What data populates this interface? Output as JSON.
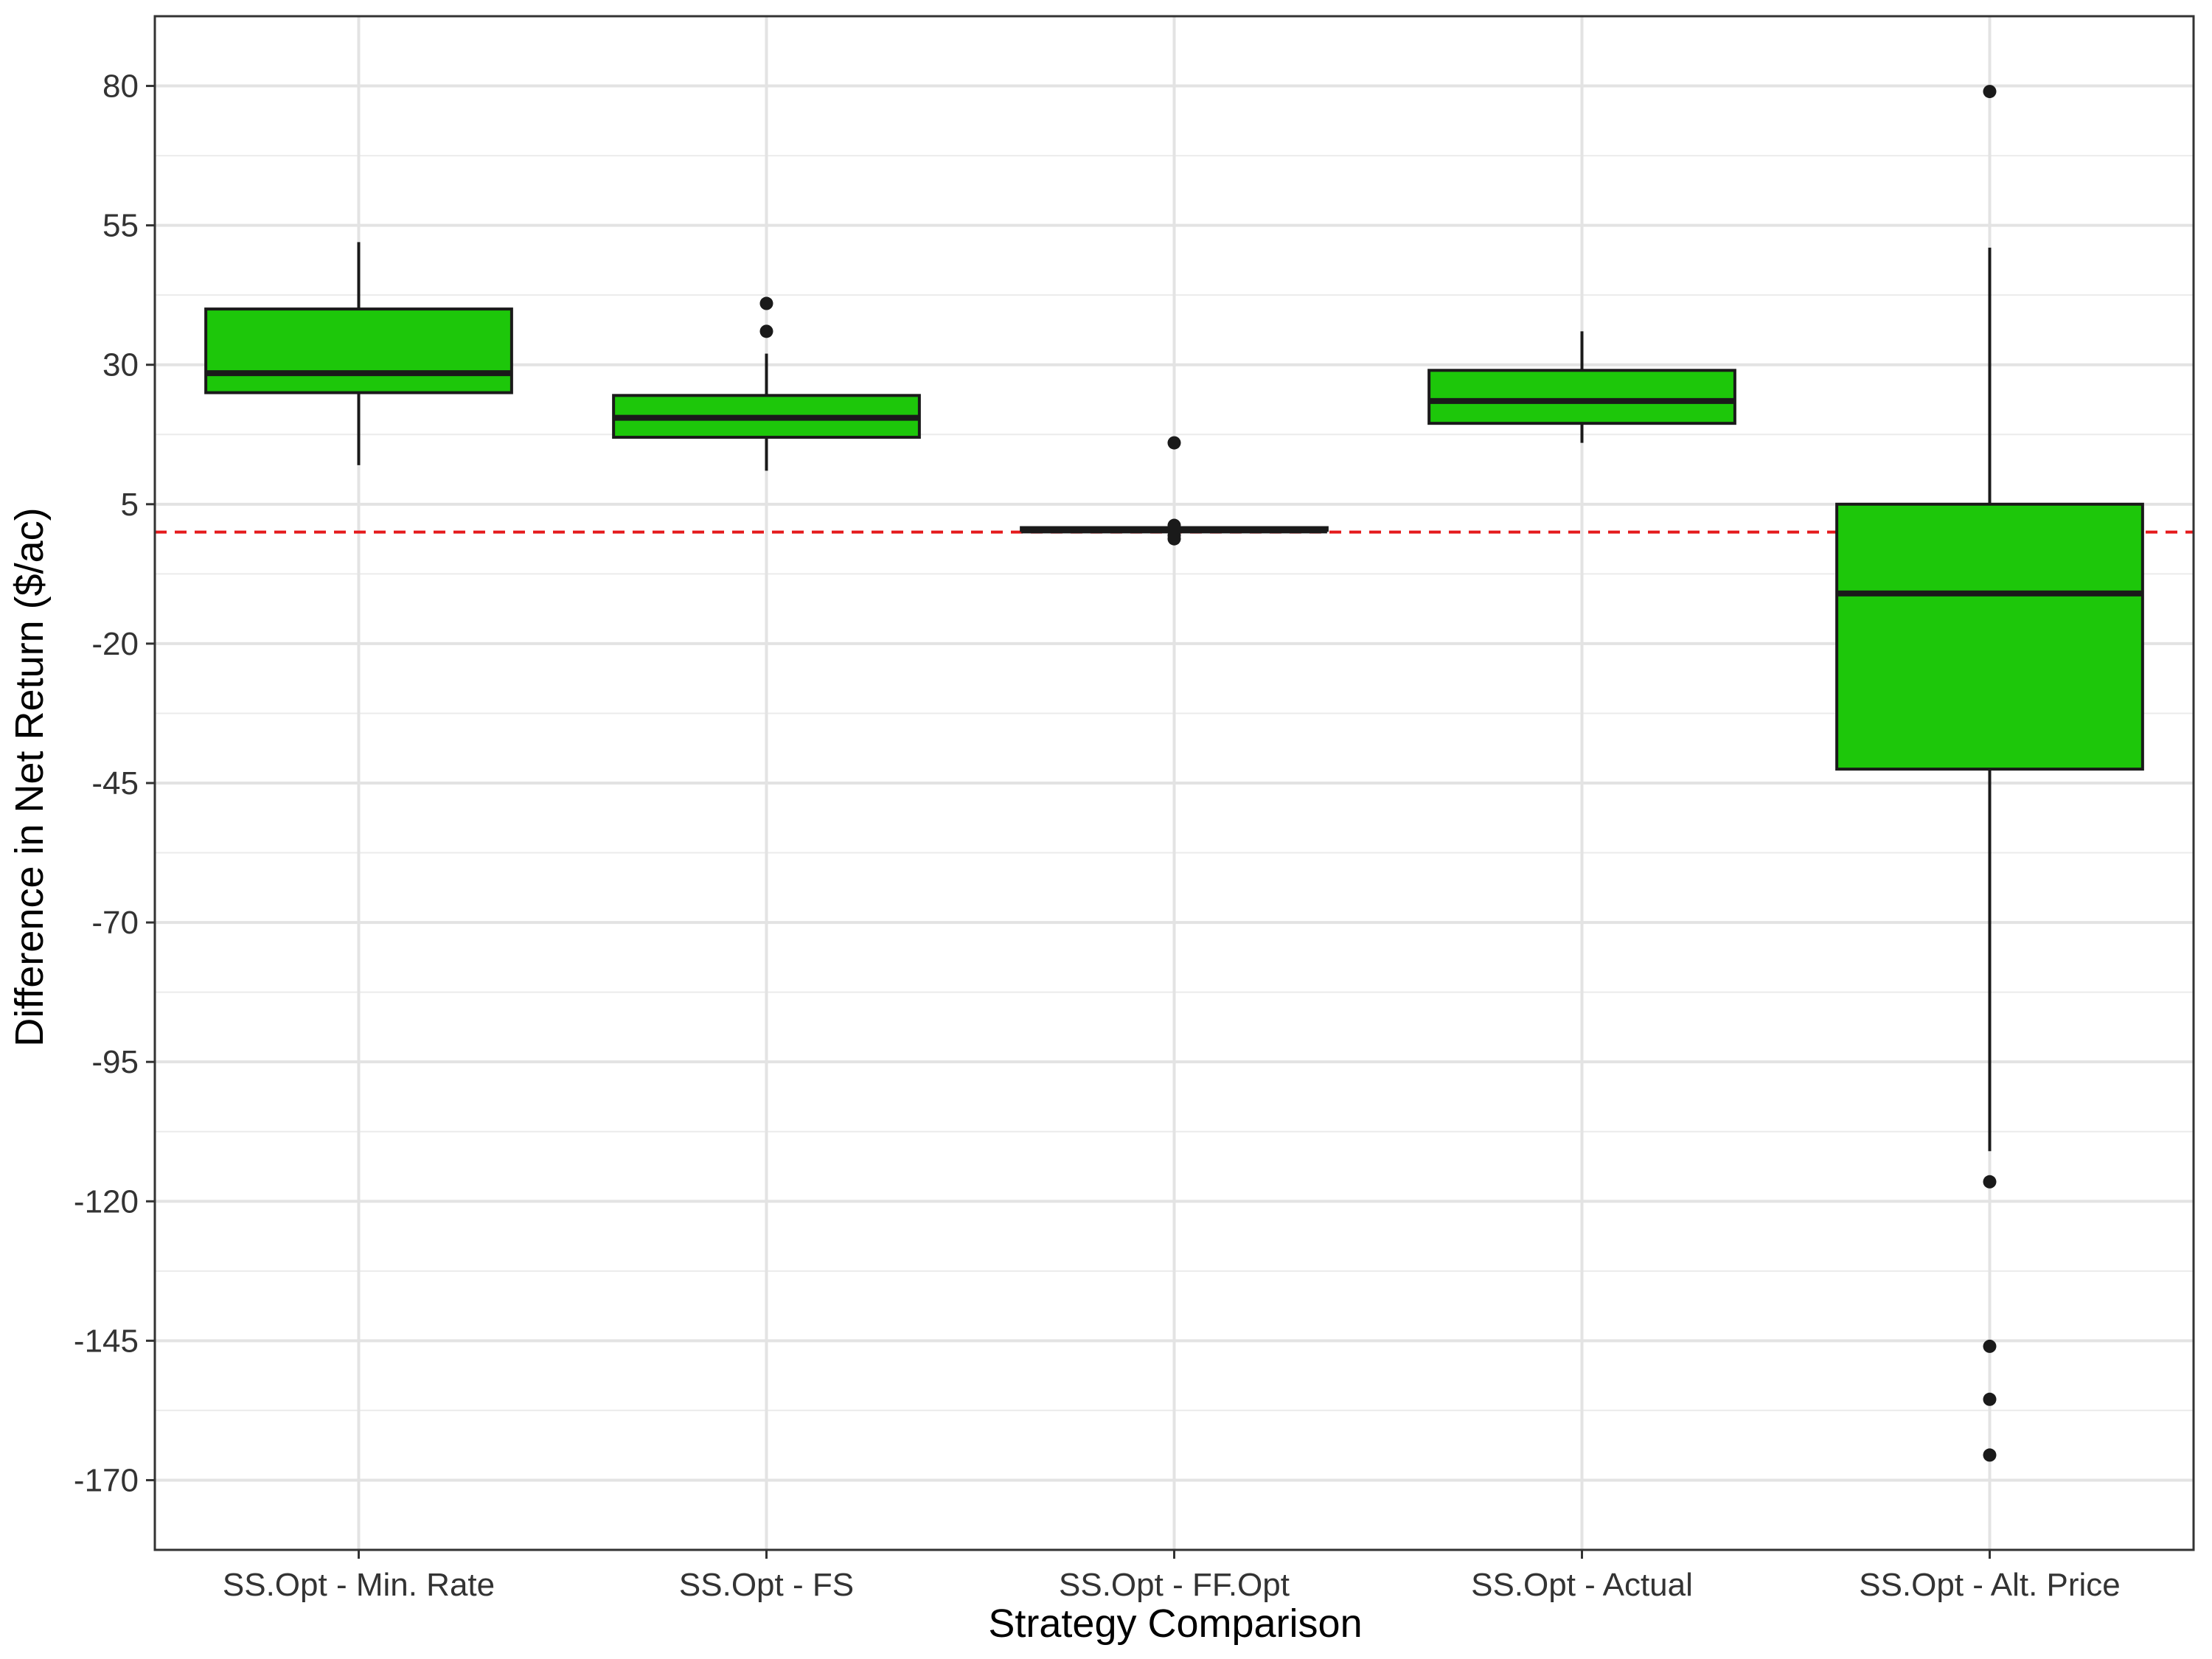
{
  "chart_data": {
    "type": "box",
    "xlabel": "Strategy Comparison",
    "ylabel": "Difference in Net Return ($/ac)",
    "ylim": [
      -182.5,
      92.5
    ],
    "yticks": [
      80,
      55,
      30,
      5,
      -20,
      -45,
      -70,
      -95,
      -120,
      -145,
      -170
    ],
    "grid": true,
    "reference_line": {
      "y": 0,
      "color": "#e41a1c",
      "style": "dashed"
    },
    "box_fill": "#1dc70a",
    "categories": [
      "SS.Opt - Min. Rate",
      "SS.Opt - FS",
      "SS.Opt - FF.Opt",
      "SS.Opt - Actual",
      "SS.Opt - Alt. Price"
    ],
    "boxes": [
      {
        "whisker_low": 12,
        "q1": 25,
        "median": 28.5,
        "q3": 40,
        "whisker_high": 52,
        "outliers": []
      },
      {
        "whisker_low": 11,
        "q1": 17,
        "median": 20.5,
        "q3": 24.5,
        "whisker_high": 32,
        "outliers": [
          36,
          41
        ]
      },
      {
        "whisker_low": 0.3,
        "q1": 0.3,
        "median": 0.3,
        "q3": 0.8,
        "whisker_high": 0.8,
        "outliers": [
          16,
          1.2,
          0.6,
          -0.6,
          -1.2
        ]
      },
      {
        "whisker_low": 16,
        "q1": 19.5,
        "median": 23.5,
        "q3": 29,
        "whisker_high": 36,
        "outliers": []
      },
      {
        "whisker_low": -111,
        "q1": -42.5,
        "median": -11,
        "q3": 5,
        "whisker_high": 51,
        "outliers": [
          79,
          -116.5,
          -146,
          -155.5,
          -165.5
        ]
      }
    ]
  }
}
